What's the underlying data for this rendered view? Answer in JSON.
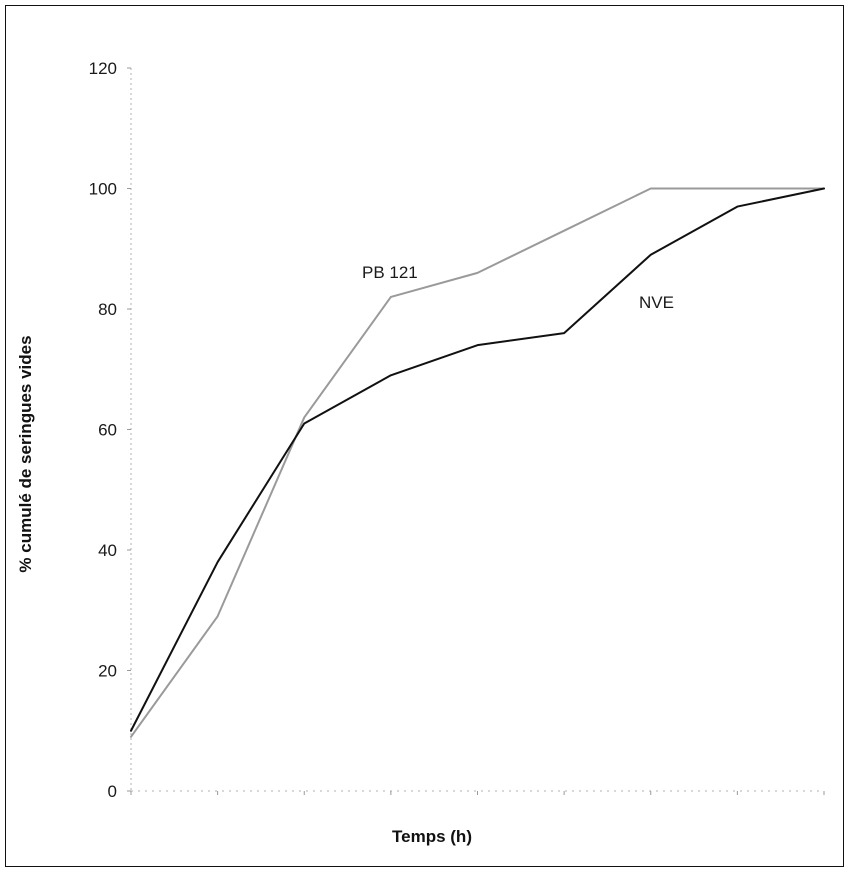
{
  "chart_data": {
    "type": "line",
    "title": "",
    "xlabel": "Temps (h)",
    "ylabel": "% cumulé de seringues vides",
    "ylim": [
      0,
      120
    ],
    "yticks": [
      "0",
      "20",
      "40",
      "60",
      "80",
      "100",
      "120"
    ],
    "x": [
      0,
      1,
      2,
      3,
      4,
      5,
      6,
      7,
      8
    ],
    "xticks_labeled": false,
    "grid": false,
    "legend": "none",
    "series": [
      {
        "name": "PB 121",
        "color": "#9a9a9a",
        "values": [
          9,
          29,
          62,
          82,
          86,
          93,
          100,
          100,
          100
        ]
      },
      {
        "name": "NVE",
        "color": "#111111",
        "values": [
          10,
          38,
          61,
          69,
          74,
          76,
          89,
          97,
          100
        ]
      }
    ],
    "annotations": [
      {
        "text": "PB 121"
      },
      {
        "text": "NVE"
      }
    ]
  }
}
